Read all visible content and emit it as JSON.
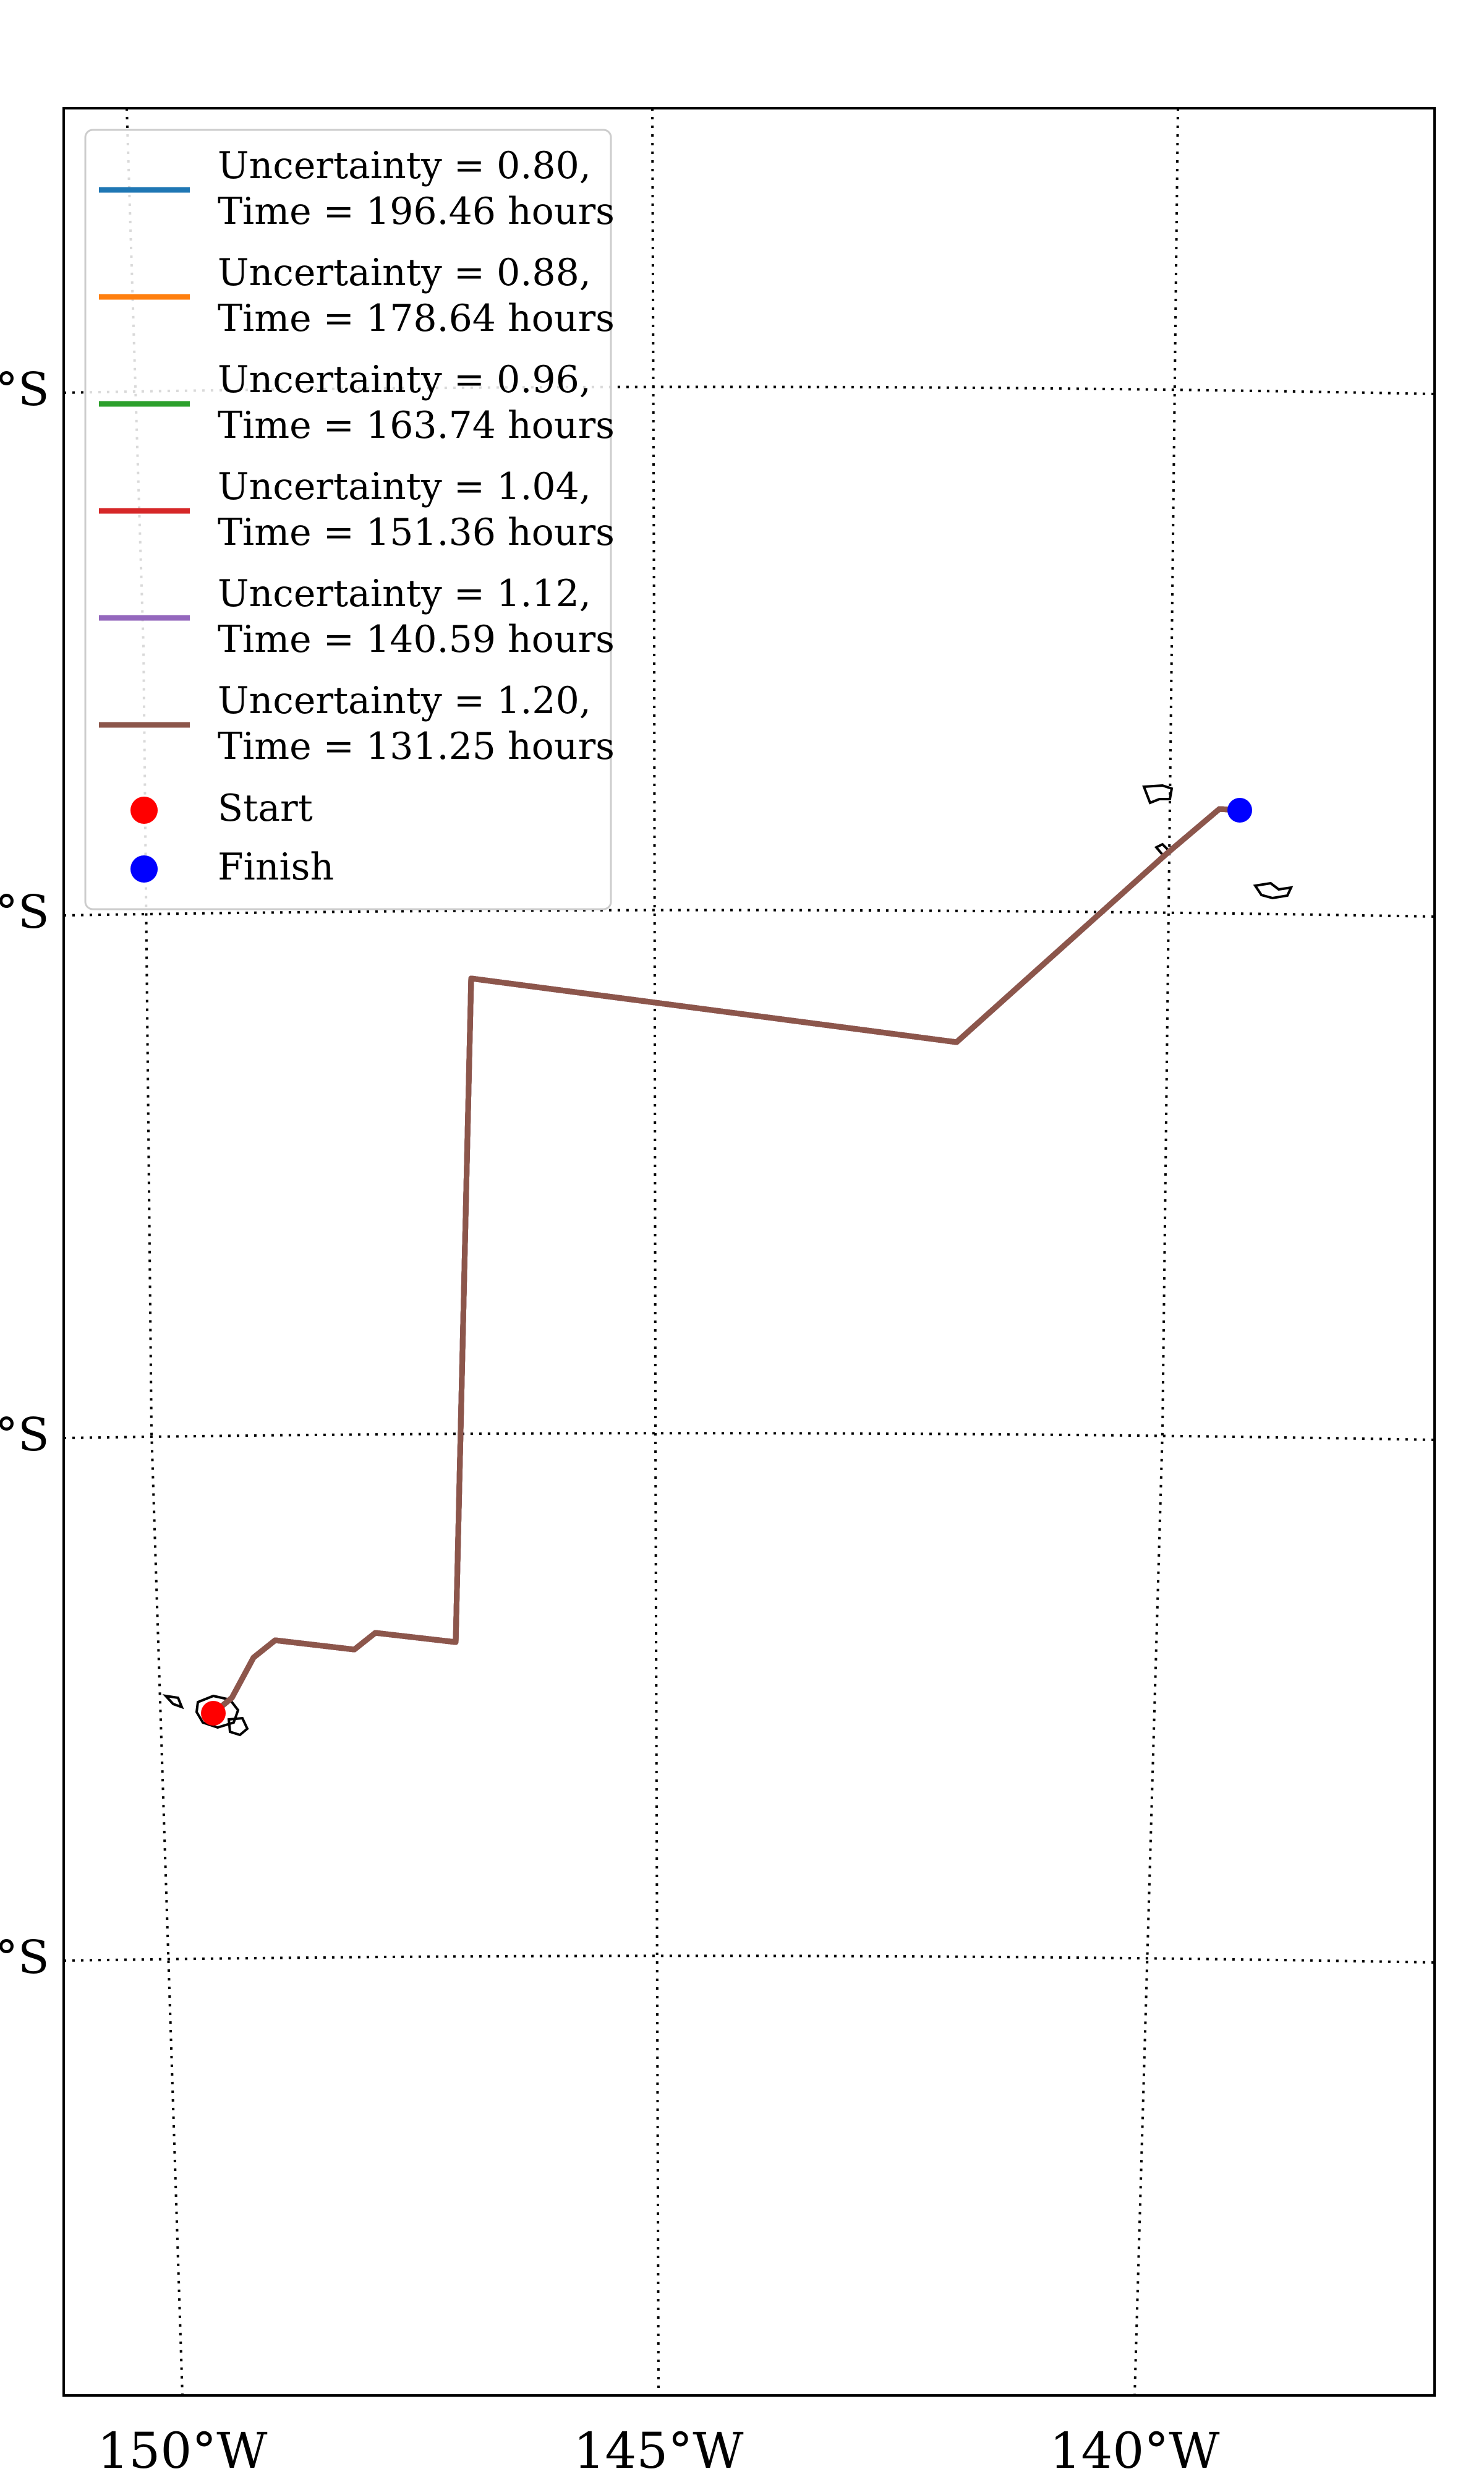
{
  "map": {
    "lon_labels": [
      "150°W",
      "145°W",
      "140°W"
    ],
    "lat_labels": [
      "°S",
      "°S",
      "°S",
      "°S"
    ],
    "colors": {
      "route": "#8c564b",
      "start": "#ff0000",
      "finish": "#0000ff",
      "coast": "#000000"
    }
  },
  "legend": {
    "entries": [
      {
        "line1": "Uncertainty = 0.80,",
        "line2": "Time = 196.46 hours",
        "color": "#1f77b4"
      },
      {
        "line1": "Uncertainty = 0.88,",
        "line2": "Time = 178.64 hours",
        "color": "#ff7f0e"
      },
      {
        "line1": "Uncertainty = 0.96,",
        "line2": "Time = 163.74 hours",
        "color": "#2ca02c"
      },
      {
        "line1": "Uncertainty = 1.04,",
        "line2": "Time = 151.36 hours",
        "color": "#d62728"
      },
      {
        "line1": "Uncertainty = 1.12,",
        "line2": "Time = 140.59 hours",
        "color": "#9467bd"
      },
      {
        "line1": "Uncertainty = 1.20,",
        "line2": "Time = 131.25 hours",
        "color": "#8c564b"
      }
    ],
    "start_label": "Start",
    "finish_label": "Finish"
  }
}
